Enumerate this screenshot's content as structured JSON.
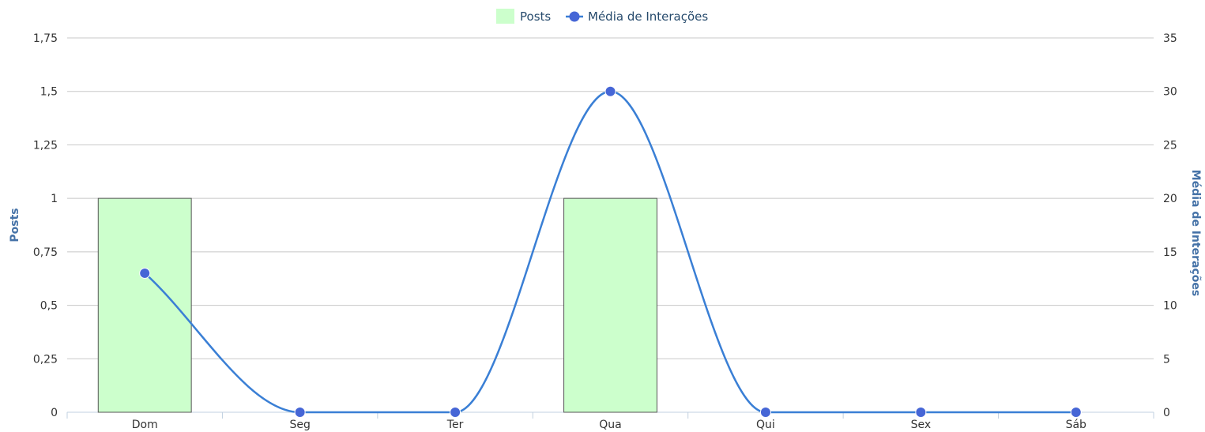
{
  "chart_data": {
    "type": "bar",
    "categories": [
      "Dom",
      "Seg",
      "Ter",
      "Qua",
      "Qui",
      "Sex",
      "Sáb"
    ],
    "series": [
      {
        "name": "Posts",
        "type": "bar",
        "axis": "left",
        "values": [
          1,
          0,
          0,
          1,
          0,
          0,
          0
        ],
        "color": "#ccffcc",
        "border_color": "#555555"
      },
      {
        "name": "Média de Interações",
        "type": "line",
        "smooth": true,
        "axis": "right",
        "values": [
          13,
          0,
          0,
          30,
          0,
          0,
          0
        ],
        "color": "#3a7fd5",
        "marker_color": "#4666d6"
      }
    ],
    "y_left": {
      "label": "Posts",
      "min": 0,
      "max": 1.75,
      "ticks": [
        "0",
        "0,25",
        "0,5",
        "0,75",
        "1",
        "1,25",
        "1,5",
        "1,75"
      ]
    },
    "y_right": {
      "label": "Média de Interações",
      "min": 0,
      "max": 35,
      "ticks": [
        "0",
        "5",
        "10",
        "15",
        "20",
        "25",
        "30",
        "35"
      ]
    },
    "grid": true,
    "legend_position": "top-center",
    "title": "",
    "xlabel": ""
  }
}
